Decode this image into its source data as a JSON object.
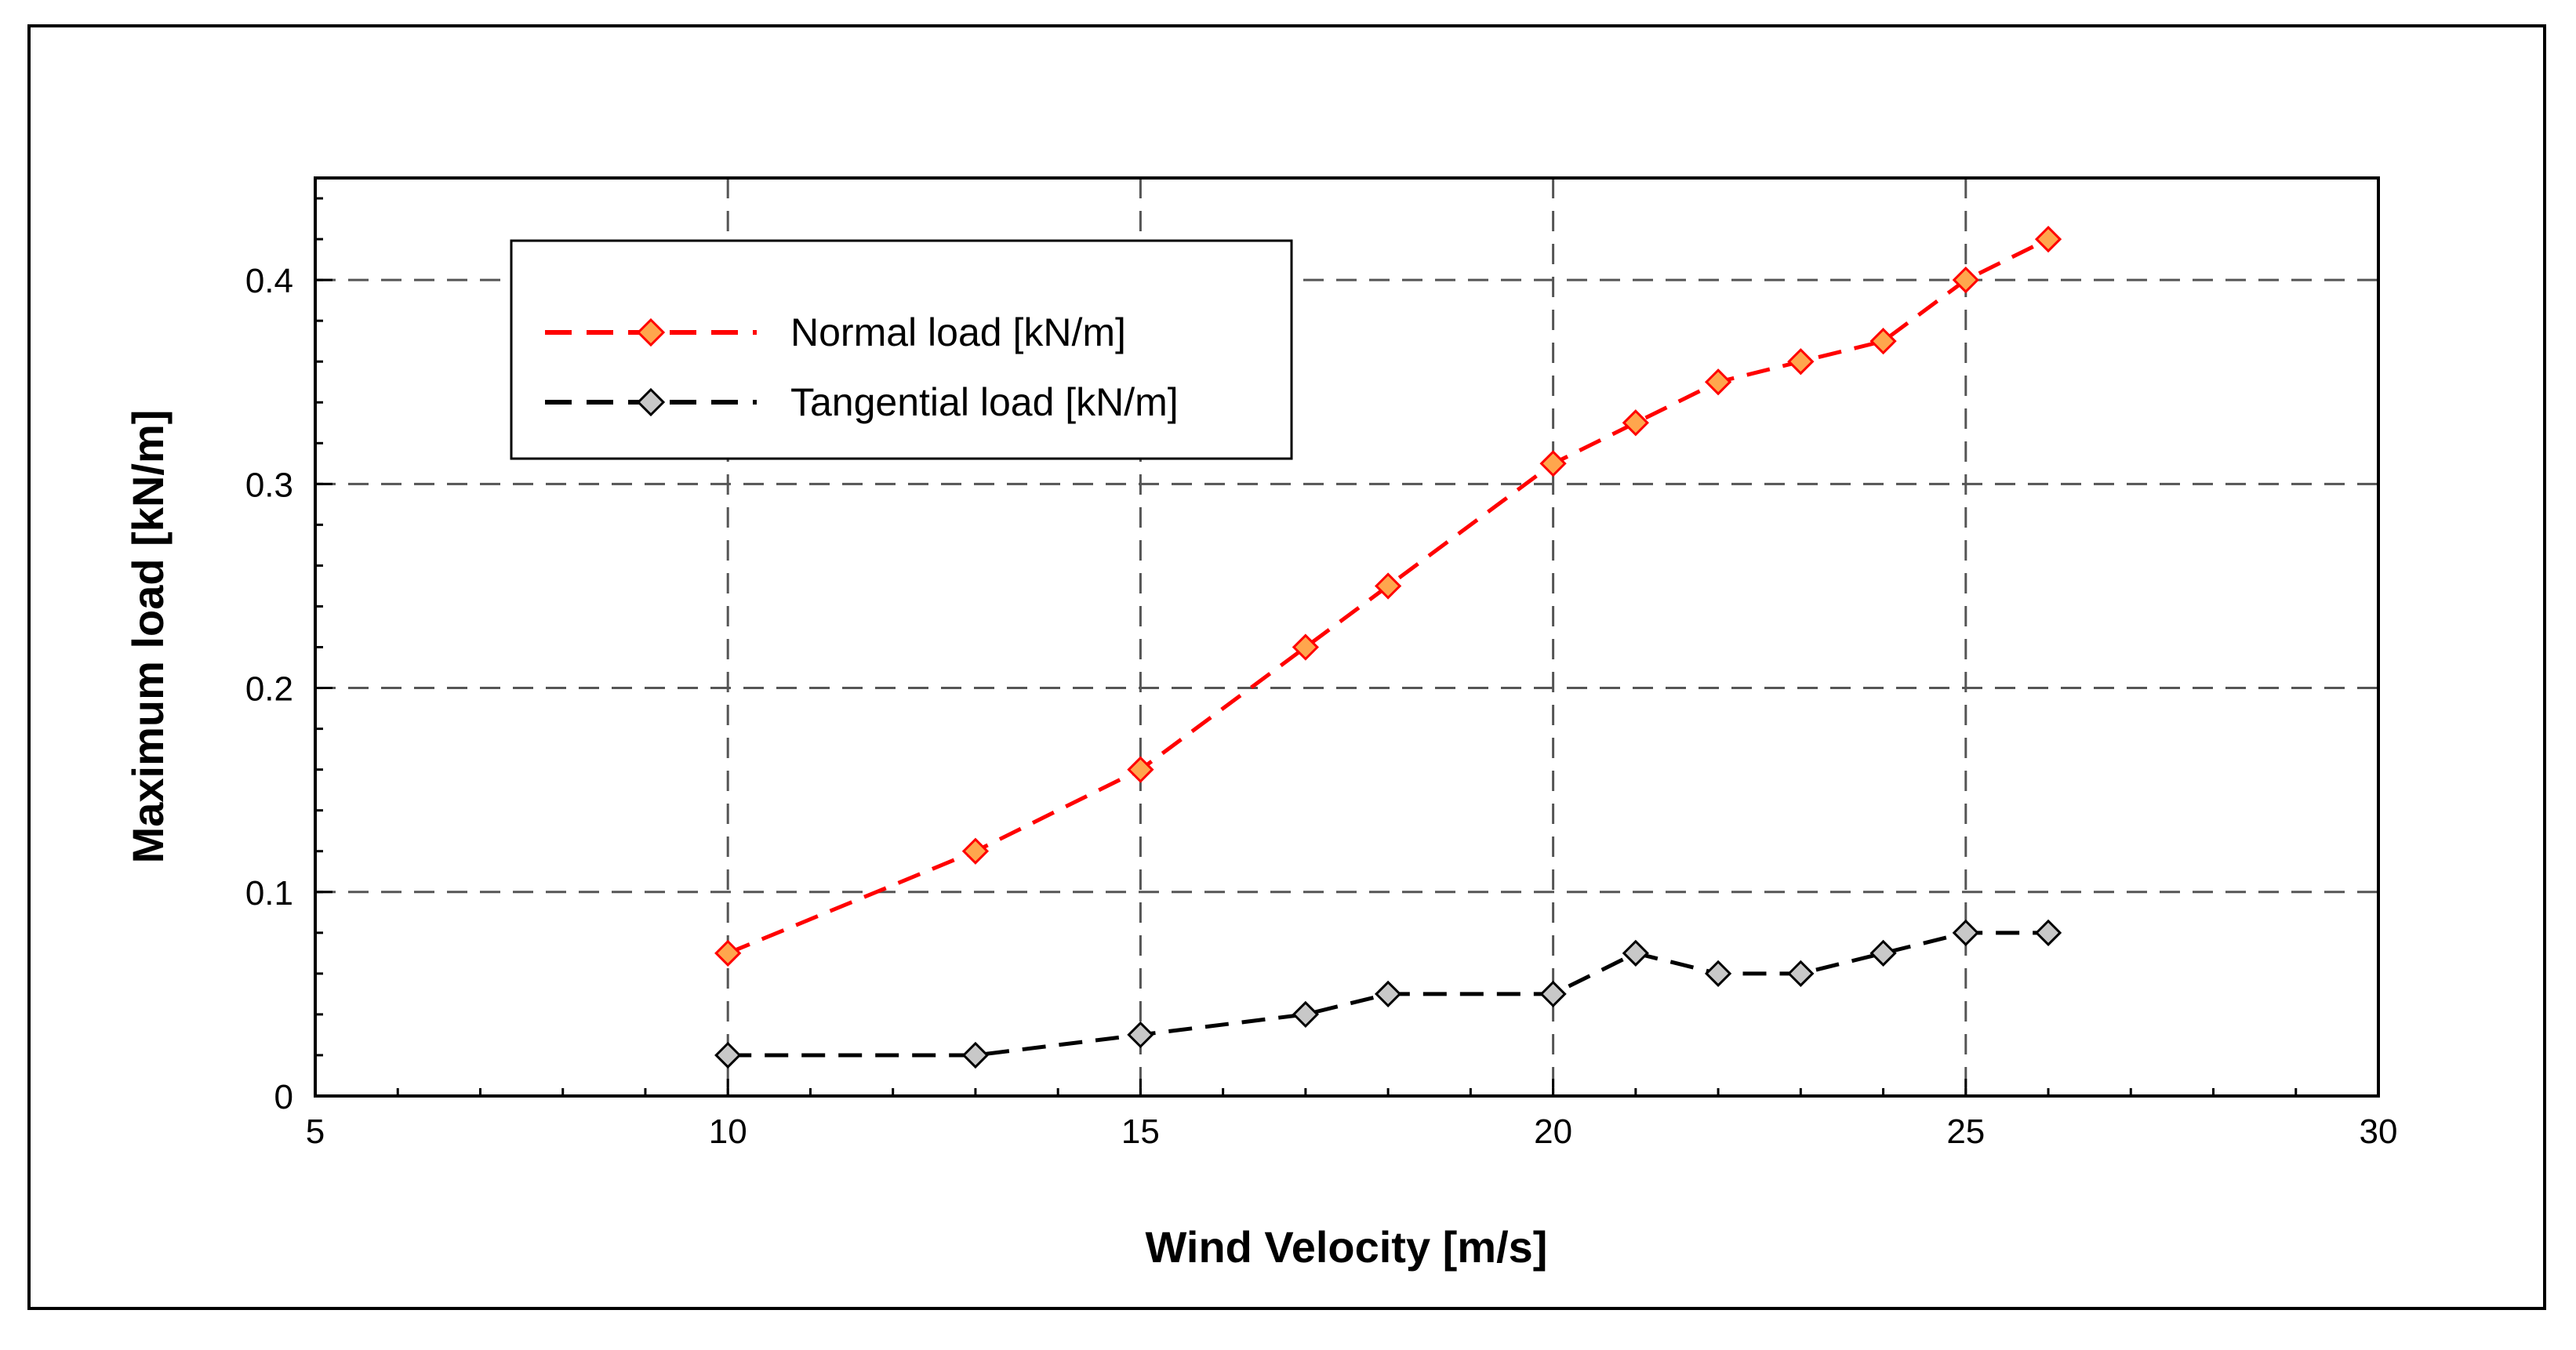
{
  "chart_data": {
    "type": "line",
    "xlabel": "Wind Velocity [m/s]",
    "ylabel": "Maximum load [kN/m]",
    "xlim": [
      5,
      30
    ],
    "ylim": [
      0,
      0.45
    ],
    "x_ticks": [
      5,
      10,
      15,
      20,
      25,
      30
    ],
    "x_tick_labels": [
      "5",
      "10",
      "15",
      "20",
      "25",
      "30"
    ],
    "y_ticks": [
      0,
      0.1,
      0.2,
      0.3,
      0.4
    ],
    "y_tick_labels": [
      "0",
      "0.1",
      "0.2",
      "0.3",
      "0.4"
    ],
    "grid": true,
    "legend_position": "top-left",
    "series": [
      {
        "name": "Normal load [kN/m]",
        "line_color": "#ff0000",
        "marker_fill": "#ffa64d",
        "x": [
          10,
          13,
          15,
          17,
          18,
          20,
          21,
          22,
          23,
          24,
          25,
          26
        ],
        "values": [
          0.07,
          0.12,
          0.16,
          0.22,
          0.25,
          0.31,
          0.33,
          0.35,
          0.36,
          0.37,
          0.4,
          0.42
        ]
      },
      {
        "name": "Tangential load [kN/m]",
        "line_color": "#000000",
        "marker_fill": "#c8c8c8",
        "x": [
          10,
          13,
          15,
          17,
          18,
          20,
          21,
          22,
          23,
          24,
          25,
          26
        ],
        "values": [
          0.02,
          0.02,
          0.03,
          0.04,
          0.05,
          0.05,
          0.07,
          0.06,
          0.06,
          0.07,
          0.08,
          0.08
        ]
      }
    ]
  }
}
